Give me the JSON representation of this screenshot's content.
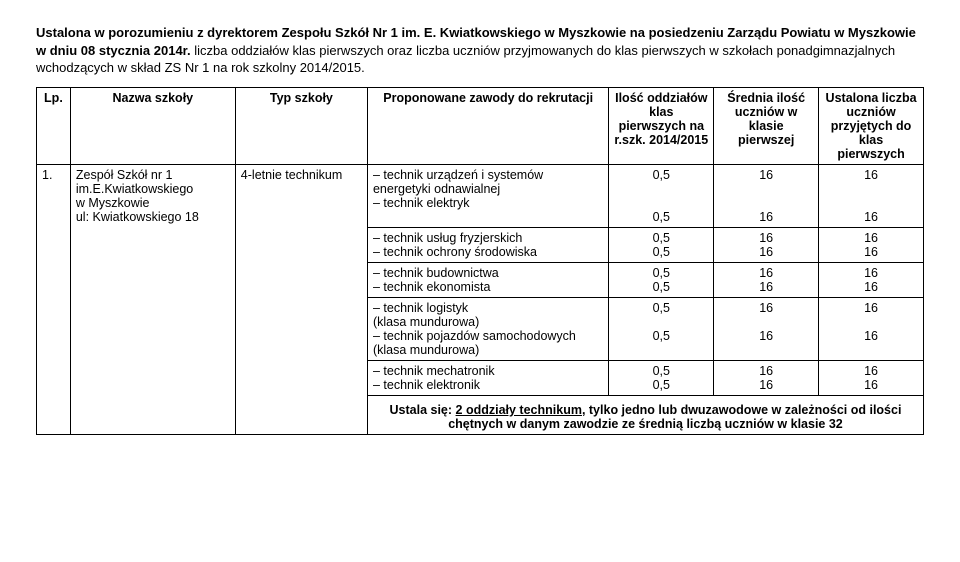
{
  "header": {
    "line1_prefix": "Ustalona w porozumieniu z dyrektorem Zespołu Szkół Nr 1 im. E. Kwiatkowskiego w Myszkowie na posiedzeniu Zarządu Powiatu w Myszkowie w dniu 08 stycznia 2014r.",
    "line1_suffix": " liczba oddziałów klas pierwszych oraz liczba uczniów przyjmowanych do klas pierwszych w szkołach ponadgimnazjalnych wchodzących w skład ZS Nr 1 na rok szkolny 2014/2015."
  },
  "table": {
    "head": {
      "lp": "Lp.",
      "school_name": "Nazwa szkoły",
      "school_type": "Typ szkoły",
      "professions": "Proponowane zawody do rekrutacji",
      "units": "Ilość oddziałów klas pierwszych na r.szk. 2014/2015",
      "avg": "Średnia ilość uczniów w klasie pierwszej",
      "accepted": "Ustalona liczba uczniów przyjętych do klas pierwszych"
    },
    "row1": {
      "lp": "1.",
      "name_l1": "Zespół Szkół nr 1",
      "name_l2": "im.E.Kwiatkowskiego",
      "name_l3": "w Myszkowie",
      "name_l4": "ul: Kwiatkowskiego 18",
      "type": "4-letnie technikum",
      "prof1": "technik urządzeń i systemów energetyki odnawialnej",
      "prof2": "technik elektryk",
      "v1_units": "0,5",
      "v1_avg": "16",
      "v1_acc": "16",
      "v2_units": "0,5",
      "v2_avg": "16",
      "v2_acc": "16"
    },
    "row2": {
      "prof1": "technik usług fryzjerskich",
      "prof2": "technik ochrony środowiska",
      "v1_units": "0,5",
      "v1_avg": "16",
      "v1_acc": "16",
      "v2_units": "0,5",
      "v2_avg": "16",
      "v2_acc": "16"
    },
    "row3": {
      "prof1": "technik budownictwa",
      "prof2": "technik ekonomista",
      "v1_units": "0,5",
      "v1_avg": "16",
      "v1_acc": "16",
      "v2_units": "0,5",
      "v2_avg": "16",
      "v2_acc": "16"
    },
    "row4": {
      "prof1": "technik logistyk",
      "prof1_sub": "(klasa mundurowa)",
      "prof2": "technik pojazdów samochodowych",
      "prof2_sub": "(klasa mundurowa)",
      "v1_units": "0,5",
      "v1_avg": "16",
      "v1_acc": "16",
      "v2_units": "0,5",
      "v2_avg": "16",
      "v2_acc": "16"
    },
    "row5": {
      "prof1": "technik mechatronik",
      "prof2": "technik elektronik",
      "v1_units": "0,5",
      "v1_avg": "16",
      "v1_acc": "16",
      "v2_units": "0,5",
      "v2_avg": "16",
      "v2_acc": "16"
    }
  },
  "footer": {
    "prefix": "Ustala się: ",
    "underlined": "2 oddziały technikum",
    "rest": ", tylko jedno lub dwuzawodowe w zależności od ilości chętnych w danym zawodzie ze średnią liczbą uczniów w klasie 32"
  }
}
